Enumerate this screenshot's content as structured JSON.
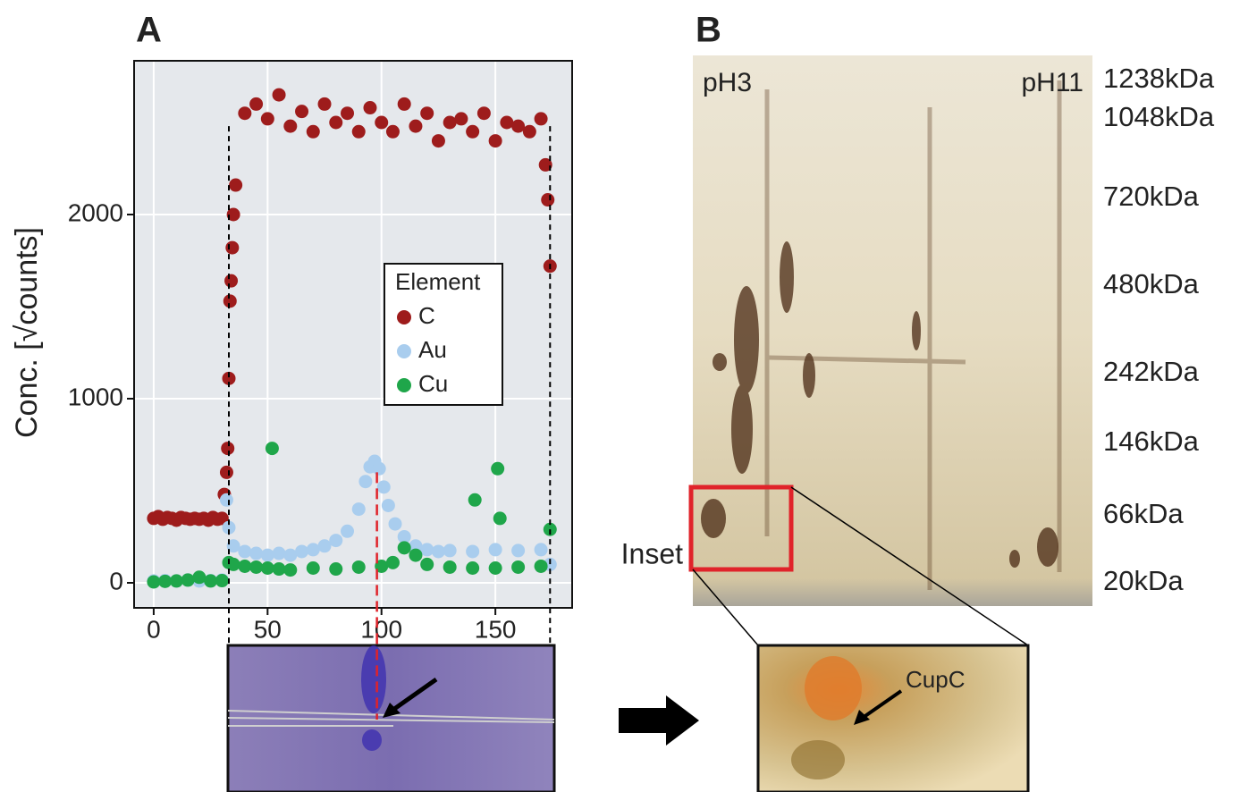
{
  "chart_data": {
    "type": "scatter",
    "ylabel": "Conc. [√counts]",
    "xlim": [
      -8.6,
      183.7
    ],
    "ylim": [
      -136,
      2835
    ],
    "xticks": [
      0,
      50,
      100,
      150
    ],
    "yticks": [
      0,
      1000,
      2000
    ],
    "grid": true,
    "legend": "center-right",
    "legend_title": "Element",
    "vlines": [
      33,
      174
    ],
    "highlight_line": 98,
    "series": [
      {
        "name": "C",
        "color": "#9e1c1c",
        "x": [
          0,
          2,
          4,
          6,
          8,
          10,
          12,
          14,
          16,
          18,
          20,
          22,
          24,
          26,
          28,
          30,
          31,
          32,
          32.5,
          33,
          33.5,
          34,
          34.5,
          35,
          36,
          40,
          45,
          50,
          55,
          60,
          65,
          70,
          75,
          80,
          85,
          90,
          95,
          100,
          105,
          110,
          115,
          120,
          125,
          130,
          135,
          140,
          145,
          150,
          155,
          160,
          165,
          170,
          172,
          173,
          174
        ],
        "values": [
          350,
          360,
          345,
          355,
          350,
          340,
          355,
          350,
          345,
          350,
          345,
          350,
          340,
          355,
          345,
          350,
          480,
          600,
          730,
          1110,
          1530,
          1640,
          1820,
          2000,
          2160,
          2550,
          2600,
          2520,
          2650,
          2480,
          2560,
          2450,
          2600,
          2500,
          2550,
          2450,
          2580,
          2500,
          2450,
          2600,
          2480,
          2550,
          2400,
          2500,
          2520,
          2450,
          2550,
          2400,
          2500,
          2480,
          2450,
          2520,
          2270,
          2080,
          1720
        ]
      },
      {
        "name": "Au",
        "color": "#a9cdee",
        "x": [
          0,
          5,
          10,
          15,
          20,
          25,
          30,
          32,
          33,
          35,
          40,
          45,
          50,
          55,
          60,
          65,
          70,
          75,
          80,
          85,
          90,
          93,
          95,
          97,
          99,
          101,
          103,
          106,
          110,
          115,
          120,
          125,
          130,
          140,
          150,
          160,
          170,
          174
        ],
        "values": [
          10,
          12,
          10,
          15,
          10,
          12,
          15,
          450,
          300,
          200,
          170,
          160,
          150,
          160,
          150,
          170,
          180,
          200,
          230,
          280,
          400,
          550,
          630,
          660,
          620,
          520,
          420,
          320,
          250,
          200,
          180,
          170,
          175,
          170,
          180,
          175,
          180,
          100
        ]
      },
      {
        "name": "Cu",
        "color": "#1fa64a",
        "x": [
          0,
          5,
          10,
          15,
          20,
          25,
          30,
          33,
          35,
          40,
          45,
          50,
          52,
          55,
          60,
          70,
          80,
          90,
          100,
          105,
          110,
          115,
          120,
          130,
          140,
          141,
          150,
          151,
          152,
          160,
          170,
          174
        ],
        "values": [
          5,
          8,
          10,
          15,
          30,
          10,
          12,
          110,
          100,
          90,
          85,
          80,
          730,
          75,
          70,
          80,
          75,
          85,
          90,
          110,
          190,
          150,
          100,
          85,
          80,
          450,
          80,
          620,
          350,
          85,
          90,
          290
        ]
      }
    ]
  },
  "panels": {
    "a_label": "A",
    "b_label": "B"
  },
  "gel": {
    "left_label": "pH3",
    "right_label": "pH11",
    "markers": [
      "1238kDa",
      "1048kDa",
      "720kDa",
      "480kDa",
      "242kDa",
      "146kDa",
      "66kDa",
      "20kDa"
    ],
    "inset_label": "Inset",
    "inset_annotation": "CupC"
  }
}
